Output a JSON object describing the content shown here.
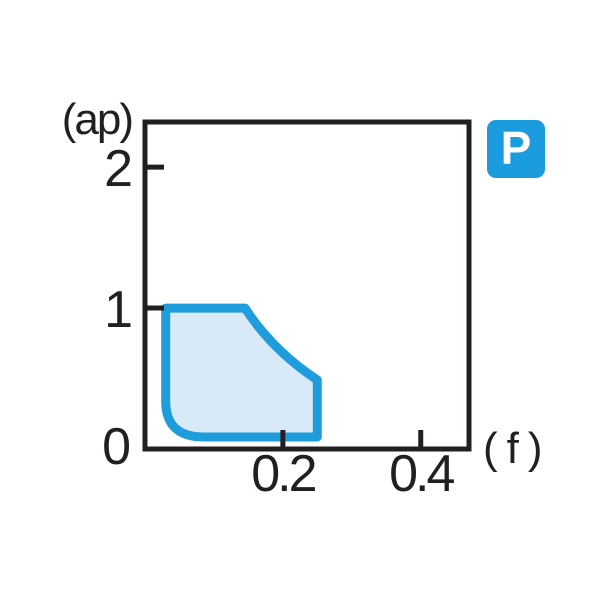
{
  "badge": {
    "label": "P",
    "bg_color": "#1a9cde",
    "text_color": "#ffffff"
  },
  "chart_data": {
    "type": "area",
    "title": "",
    "xlabel": "(f)",
    "ylabel": "(ap)",
    "xlim": [
      0,
      0.47
    ],
    "ylim": [
      0,
      2.32
    ],
    "grid": false,
    "axis_color": "#231f20",
    "x_ticks": [
      {
        "value": 0.2,
        "label": "0.2"
      },
      {
        "value": 0.4,
        "label": "0.4"
      }
    ],
    "y_ticks": [
      {
        "value": 1,
        "label": "1"
      },
      {
        "value": 2,
        "label": "2"
      }
    ],
    "origin_label": "0",
    "region": {
      "name": "recommended-cutting-range",
      "fill_color": "#d8e9f7",
      "stroke_color": "#1e9cdb",
      "stroke_width": 9,
      "outline": [
        {
          "type": "move",
          "f": 0.03,
          "ap": 1.0
        },
        {
          "type": "line",
          "f": 0.145,
          "ap": 1.0
        },
        {
          "type": "quad",
          "cf": 0.185,
          "cap": 0.7,
          "f": 0.25,
          "ap": 0.49
        },
        {
          "type": "line",
          "f": 0.25,
          "ap": 0.085
        },
        {
          "type": "line",
          "f": 0.085,
          "ap": 0.085
        },
        {
          "type": "quad",
          "cf": 0.03,
          "cap": 0.085,
          "f": 0.03,
          "ap": 0.34
        },
        {
          "type": "close"
        }
      ]
    }
  }
}
